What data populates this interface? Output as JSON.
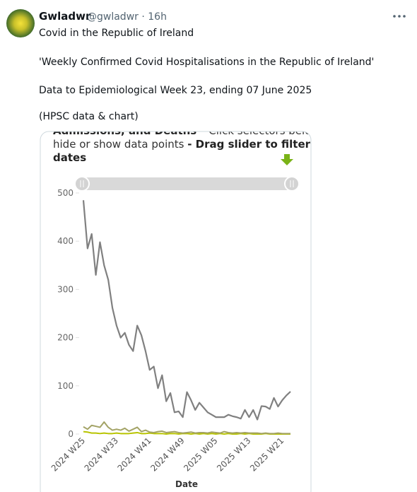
{
  "tweet": {
    "name": "Gwladwr",
    "handle": "@gwladwr · 16h",
    "text": [
      "Covid in the Republic of Ireland",
      "'Weekly Confirmed Covid Hospitalisations in the Republic of Ireland'",
      "Data to Epidemiological Week 23, ending 07 June 2025",
      "(HPSC data & chart)"
    ]
  },
  "card_header": [
    [
      {
        "text": "Admissions, and Deaths",
        "bold": true
      },
      {
        "text": " – Click selectors below to",
        "bold": false
      }
    ],
    [
      {
        "text": "hide or show data points ",
        "bold": false
      },
      {
        "text": "- Drag slider to filter",
        "bold": true
      }
    ],
    [
      {
        "text": "dates",
        "bold": true
      }
    ]
  ],
  "chart_data": {
    "type": "line",
    "x_label": "Date",
    "categories": [
      "2024 W25",
      null,
      null,
      null,
      null,
      null,
      null,
      null,
      "2024 W33",
      null,
      null,
      null,
      null,
      null,
      null,
      null,
      "2024 W41",
      null,
      null,
      null,
      null,
      null,
      null,
      null,
      "2024 W49",
      null,
      null,
      null,
      null,
      null,
      null,
      null,
      "2025 W05",
      null,
      null,
      null,
      null,
      null,
      null,
      null,
      "2025 W13",
      null,
      null,
      null,
      null,
      null,
      null,
      null,
      "2025 W21",
      null,
      null
    ],
    "series": [
      {
        "color": "#808080",
        "values": [
          485,
          385,
          415,
          330,
          398,
          350,
          320,
          262,
          225,
          200,
          210,
          185,
          172,
          225,
          205,
          172,
          133,
          140,
          95,
          122,
          68,
          85,
          45,
          47,
          35,
          87,
          70,
          50,
          65,
          55,
          45,
          40,
          35,
          35,
          35,
          40,
          37,
          35,
          32,
          50,
          35,
          50,
          30,
          58,
          57,
          52,
          75,
          57,
          70,
          80,
          88
        ]
      },
      {
        "color": "#a3a366",
        "values": [
          15,
          10,
          18,
          16,
          14,
          25,
          14,
          8,
          10,
          8,
          12,
          6,
          10,
          14,
          5,
          8,
          4,
          3,
          5,
          6,
          3,
          4,
          5,
          3,
          2,
          3,
          4,
          2,
          3,
          3,
          2,
          4,
          3,
          2,
          5,
          3,
          2,
          3,
          2,
          3,
          2,
          2,
          2,
          1,
          2,
          1,
          1,
          2,
          1,
          1,
          1
        ]
      },
      {
        "color": "#b8c400",
        "values": [
          5,
          4,
          2,
          2,
          1,
          2,
          1,
          1,
          2,
          1,
          1,
          1,
          2,
          3,
          1,
          1,
          2,
          1,
          1,
          1,
          0,
          1,
          1,
          0,
          1,
          1,
          0,
          1,
          0,
          1,
          0,
          1,
          0,
          1,
          0,
          1,
          0,
          0,
          1,
          0,
          1,
          0,
          0,
          0,
          1,
          0,
          0,
          0,
          0,
          0,
          0
        ]
      }
    ],
    "ylim": [
      0,
      500
    ],
    "yticks": [
      0,
      100,
      200,
      300,
      400,
      500
    ],
    "grid": false
  }
}
